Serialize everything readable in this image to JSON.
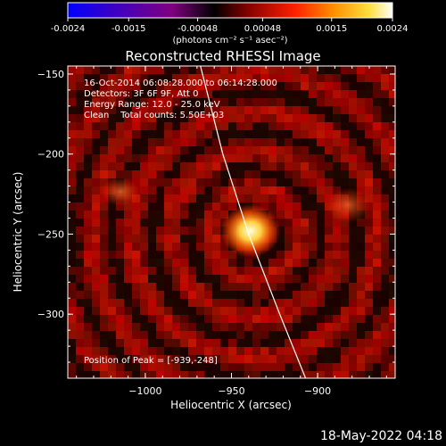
{
  "chart_data": {
    "type": "heatmap",
    "title": "Reconstructed RHESSI Image",
    "xlabel": "Heliocentric X (arcsec)",
    "ylabel": "Heliocentric Y (arcsec)",
    "xlim": [
      -1045,
      -855
    ],
    "ylim": [
      -340,
      -145
    ],
    "x_ticks": [
      -1000,
      -950,
      -900
    ],
    "y_ticks": [
      -150,
      -200,
      -250,
      -300
    ],
    "colorbar": {
      "range": [
        -0.0024,
        0.0024
      ],
      "ticks": [
        -0.0024,
        -0.0015,
        -0.00048,
        0.00048,
        0.0015,
        0.0024
      ],
      "tick_labels": [
        "-0.0024",
        "-0.0015",
        "-0.00048",
        "0.00048",
        "0.0015",
        "0.0024"
      ],
      "unit_label": "(photons cm⁻² s⁻¹ asec⁻²)",
      "colors": [
        "#0000ff",
        "#4000c0",
        "#800080",
        "#000000",
        "#800000",
        "#ff2000",
        "#ff9000",
        "#ffe040",
        "#ffffff"
      ]
    },
    "header_lines": [
      "16-Oct-2014 06:08:28.000 to 06:14:28.000",
      "Detectors: 3F 6F 9F, Att 0",
      "Energy Range: 12.0 - 25.0 keV",
      "Clean    Total counts: 5.50E+03"
    ],
    "peak_label": "Position of Peak = [-939,-248]",
    "peak": {
      "x": -939,
      "y": -248
    },
    "limb_curve": [
      [
        -968,
        -145
      ],
      [
        -955,
        -200
      ],
      [
        -940,
        -250
      ],
      [
        -922,
        -300
      ],
      [
        -907,
        -340
      ]
    ]
  },
  "footer": {
    "timestamp": "18-May-2022 04:18"
  }
}
